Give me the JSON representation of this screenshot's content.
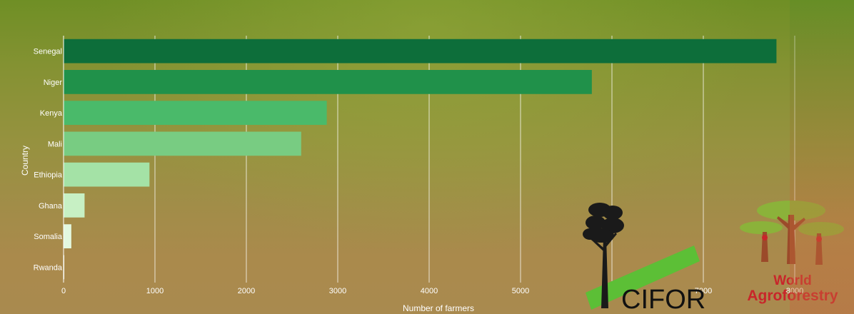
{
  "chart_data": {
    "type": "bar",
    "orientation": "horizontal",
    "categories": [
      "Senegal",
      "Niger",
      "Kenya",
      "Mali",
      "Ethiopia",
      "Ghana",
      "Somalia",
      "Rwanda"
    ],
    "values": [
      7800,
      5780,
      2880,
      2600,
      940,
      230,
      85,
      8
    ],
    "colors": [
      "#0d6e3a",
      "#20914a",
      "#4aba6a",
      "#78cc82",
      "#a4e2a6",
      "#c7f0c4",
      "#e3f8e0",
      "#f3fcf1"
    ],
    "xlabel": "Number of farmers",
    "ylabel": "Country",
    "xticks": [
      0,
      1000,
      2000,
      3000,
      4000,
      5000,
      6000,
      7000,
      8000
    ],
    "xlim": [
      0,
      8000
    ],
    "grid": true
  },
  "logos": {
    "cifor": {
      "text": "CIFOR",
      "color": "#111111",
      "accent": "#5cbf36"
    },
    "world_agroforestry": {
      "line1": "World",
      "line2": "Agroforestry",
      "color": "#c8262a",
      "accent": "#8bb23a"
    }
  }
}
